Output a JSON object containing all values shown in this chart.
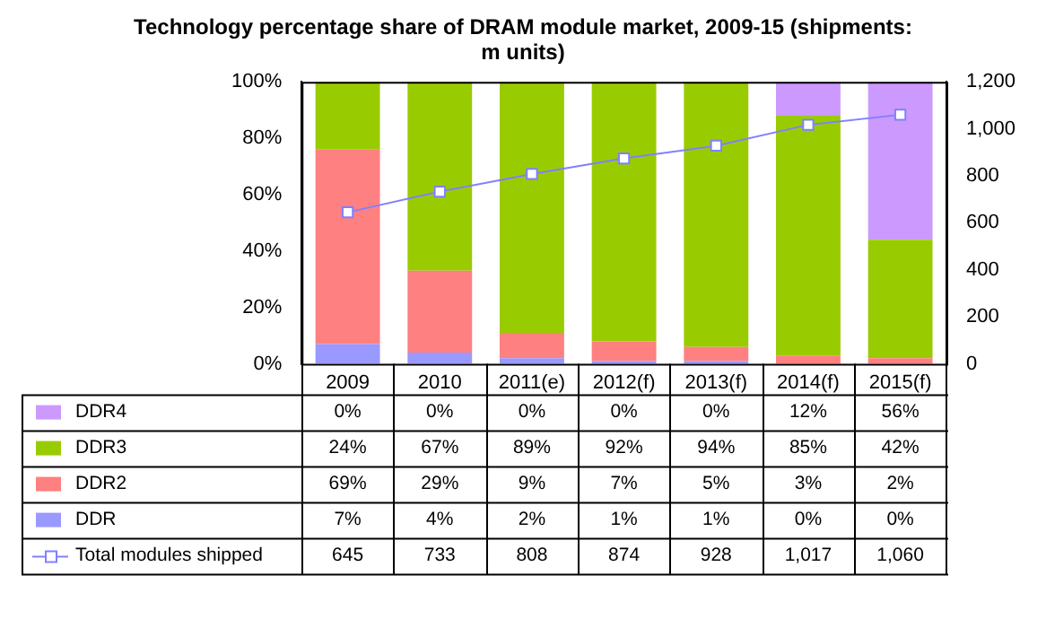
{
  "chart_data": {
    "type": "bar",
    "title": "Technology percentage share of DRAM module market, 2009-15 (shipments: m units)",
    "categories": [
      "2009",
      "2010",
      "2011(e)",
      "2012(f)",
      "2013(f)",
      "2014(f)",
      "2015(f)"
    ],
    "stacked": true,
    "legend": "bottom",
    "marker": "square",
    "ylim": [
      0,
      100
    ],
    "yticks": [
      {
        "value": 0,
        "label": "0%"
      },
      {
        "value": 20,
        "label": "20%"
      },
      {
        "value": 40,
        "label": "40%"
      },
      {
        "value": 60,
        "label": "60%"
      },
      {
        "value": 80,
        "label": "80%"
      },
      {
        "value": 100,
        "label": "100%"
      }
    ],
    "y2lim": [
      0,
      1200
    ],
    "y2ticks": [
      0,
      200,
      400,
      600,
      800,
      {
        "value": 1000,
        "label": "1,000"
      },
      {
        "value": 1200,
        "label": "1,200"
      }
    ],
    "series": [
      {
        "name": "DDR",
        "color": "#9999ff",
        "values": [
          7,
          4,
          2,
          1,
          1,
          0,
          0
        ],
        "value_labels": [
          "7%",
          "4%",
          "2%",
          "1%",
          "1%",
          "0%",
          "0%"
        ]
      },
      {
        "name": "DDR2",
        "color": "#ff8080",
        "values": [
          69,
          29,
          9,
          7,
          5,
          3,
          2
        ],
        "value_labels": [
          "69%",
          "29%",
          "9%",
          "7%",
          "5%",
          "3%",
          "2%"
        ]
      },
      {
        "name": "DDR3",
        "color": "#99cc00",
        "values": [
          24,
          67,
          89,
          92,
          94,
          85,
          42
        ],
        "value_labels": [
          "24%",
          "67%",
          "89%",
          "92%",
          "94%",
          "85%",
          "42%"
        ]
      },
      {
        "name": "DDR4",
        "color": "#cc99ff",
        "values": [
          0,
          0,
          0,
          0,
          0,
          12,
          56
        ],
        "value_labels": [
          "0%",
          "0%",
          "0%",
          "0%",
          "0%",
          "12%",
          "56%"
        ]
      },
      {
        "name": "Total modules shipped",
        "type": "line",
        "axis": "y2",
        "color": "#8080ff",
        "values": [
          645,
          733,
          808,
          874,
          928,
          1017,
          1060
        ],
        "value_labels": [
          "645",
          "733",
          "808",
          "874",
          "928",
          "1,017",
          "1,060"
        ]
      }
    ]
  }
}
